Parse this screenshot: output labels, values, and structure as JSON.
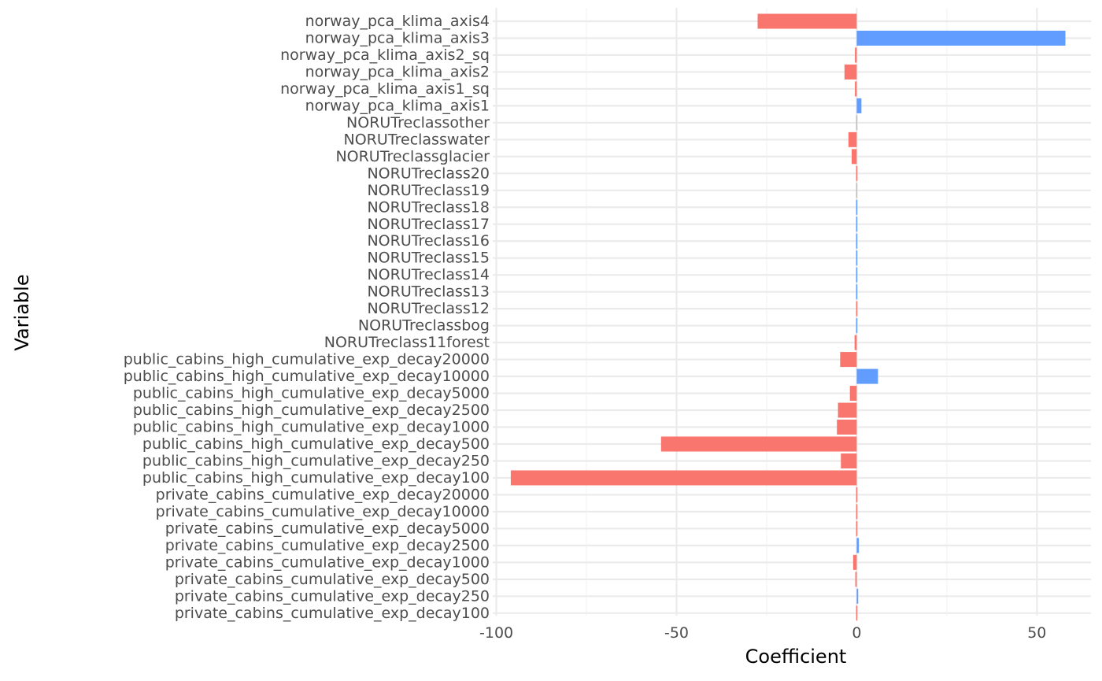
{
  "chart_data": {
    "type": "bar",
    "orientation": "horizontal",
    "xlabel": "Coefficient",
    "ylabel": "Variable",
    "xlim": [
      -101,
      65
    ],
    "xticks": [
      -100,
      -50,
      0,
      50
    ],
    "xtick_labels": [
      "-100",
      "-50",
      "0",
      "50"
    ],
    "grid": true,
    "colors": {
      "negative": "#F8766D",
      "positive": "#619CFF"
    },
    "categories": [
      "norway_pca_klima_axis4",
      "norway_pca_klima_axis3",
      "norway_pca_klima_axis2_sq",
      "norway_pca_klima_axis2",
      "norway_pca_klima_axis1_sq",
      "norway_pca_klima_axis1",
      "NORUTreclassother",
      "NORUTreclasswater",
      "NORUTreclassglacier",
      "NORUTreclass20",
      "NORUTreclass19",
      "NORUTreclass18",
      "NORUTreclass17",
      "NORUTreclass16",
      "NORUTreclass15",
      "NORUTreclass14",
      "NORUTreclass13",
      "NORUTreclass12",
      "NORUTreclassbog",
      "NORUTreclass11forest",
      "public_cabins_high_cumulative_exp_decay20000",
      "public_cabins_high_cumulative_exp_decay10000",
      "public_cabins_high_cumulative_exp_decay5000",
      "public_cabins_high_cumulative_exp_decay2500",
      "public_cabins_high_cumulative_exp_decay1000",
      "public_cabins_high_cumulative_exp_decay500",
      "public_cabins_high_cumulative_exp_decay250",
      "public_cabins_high_cumulative_exp_decay100",
      "private_cabins_cumulative_exp_decay20000",
      "private_cabins_cumulative_exp_decay10000",
      "private_cabins_cumulative_exp_decay5000",
      "private_cabins_cumulative_exp_decay2500",
      "private_cabins_cumulative_exp_decay1000",
      "private_cabins_cumulative_exp_decay500",
      "private_cabins_cumulative_exp_decay250",
      "private_cabins_cumulative_exp_decay100"
    ],
    "values": [
      -27.5,
      57.9,
      -0.5,
      -3.4,
      -0.5,
      1.3,
      0.0,
      -2.3,
      -1.4,
      -0.3,
      0.0,
      0.2,
      0.2,
      0.2,
      0.3,
      0.3,
      0.2,
      -0.2,
      0.2,
      -0.6,
      -4.6,
      5.9,
      -1.9,
      -5.2,
      -5.5,
      -54.3,
      -4.4,
      -96.0,
      -0.1,
      -0.1,
      -0.1,
      0.6,
      -1.0,
      -0.4,
      0.4,
      -0.3
    ]
  }
}
